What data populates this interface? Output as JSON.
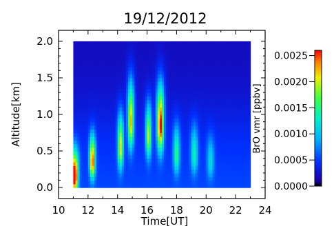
{
  "chart_data": {
    "type": "heatmap",
    "title": "19/12/2012",
    "xlabel": "Time[UT]",
    "ylabel": "Altitude[km]",
    "colorbar_label": "BrO vmr [ppbv]",
    "xlim": [
      10,
      24
    ],
    "ylim": [
      -0.15,
      2.15
    ],
    "x_ticks": [
      "10",
      "12",
      "14",
      "16",
      "18",
      "20",
      "22",
      "24"
    ],
    "y_ticks": [
      "0.0",
      "0.5",
      "1.0",
      "1.5",
      "2.0"
    ],
    "colorbar_ticks": [
      "0.0000",
      "0.0005",
      "0.0010",
      "0.0015",
      "0.0020",
      "0.0025"
    ],
    "colorbar_range": [
      0,
      0.0026
    ],
    "colormap": "rainbow (blue to red)",
    "colors": {
      "low": "#0a0aa0",
      "mid": "#00d8ff",
      "high": "#ff2000"
    },
    "data_extent": {
      "time": [
        11.0,
        23.0
      ],
      "altitude": [
        0.0,
        2.0
      ]
    },
    "plumes": [
      {
        "time": 11.1,
        "alt_peak": 0.15,
        "alt_width": 0.35,
        "time_width": 0.22,
        "value": 0.0024
      },
      {
        "time": 12.3,
        "alt_peak": 0.35,
        "alt_width": 0.35,
        "time_width": 0.18,
        "value": 0.0021
      },
      {
        "time": 14.2,
        "alt_peak": 0.55,
        "alt_width": 0.45,
        "time_width": 0.18,
        "value": 0.0017
      },
      {
        "time": 14.9,
        "alt_peak": 0.9,
        "alt_width": 0.55,
        "time_width": 0.2,
        "value": 0.0019
      },
      {
        "time": 16.1,
        "alt_peak": 0.7,
        "alt_width": 0.45,
        "time_width": 0.18,
        "value": 0.0016
      },
      {
        "time": 16.9,
        "alt_peak": 0.85,
        "alt_width": 0.55,
        "time_width": 0.22,
        "value": 0.0023
      },
      {
        "time": 18.0,
        "alt_peak": 0.45,
        "alt_width": 0.4,
        "time_width": 0.2,
        "value": 0.0011
      },
      {
        "time": 19.2,
        "alt_peak": 0.45,
        "alt_width": 0.4,
        "time_width": 0.22,
        "value": 0.0009
      },
      {
        "time": 20.3,
        "alt_peak": 0.35,
        "alt_width": 0.35,
        "time_width": 0.22,
        "value": 0.0007
      }
    ]
  }
}
